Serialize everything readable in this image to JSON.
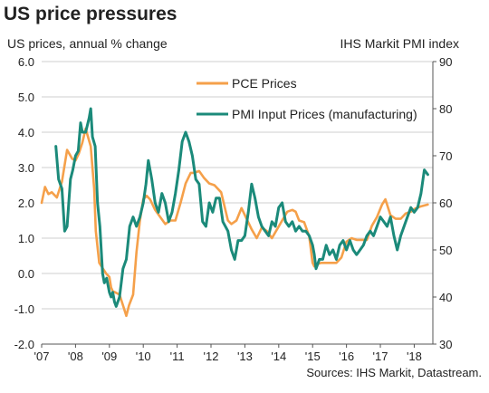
{
  "chart_data": {
    "type": "line",
    "title": "US price pressures",
    "ylabel_left": "US prices, annual % change",
    "ylabel_right": "IHS Markit PMI index",
    "source": "Sources: IHS Markit, Datastream.",
    "x_tick_labels": [
      "'07",
      "'08",
      "'09",
      "'10",
      "'11",
      "'12",
      "'13",
      "'14",
      "'15",
      "'16",
      "'17",
      "'18"
    ],
    "x_range": [
      2007.0,
      2018.55
    ],
    "y_left_range": [
      -2.0,
      6.0
    ],
    "y_left_ticks": [
      "-2.0",
      "-1.0",
      "0.0",
      "1.0",
      "2.0",
      "3.0",
      "4.0",
      "5.0",
      "6.0"
    ],
    "y_right_range": [
      30,
      90
    ],
    "y_right_ticks": [
      "30",
      "40",
      "50",
      "60",
      "70",
      "80",
      "90"
    ],
    "grid": "horizontal",
    "legend_position": "top-center",
    "series": [
      {
        "name": "PCE Prices",
        "axis": "left",
        "color": "#f5a04a",
        "x": [
          2007.0,
          2007.1,
          2007.2,
          2007.3,
          2007.45,
          2007.6,
          2007.75,
          2007.9,
          2008.0,
          2008.1,
          2008.2,
          2008.3,
          2008.45,
          2008.55,
          2008.6,
          2008.7,
          2008.8,
          2008.9,
          2009.0,
          2009.05,
          2009.1,
          2009.2,
          2009.3,
          2009.4,
          2009.5,
          2009.58,
          2009.7,
          2009.8,
          2009.9,
          2010.0,
          2010.1,
          2010.2,
          2010.35,
          2010.5,
          2010.65,
          2010.8,
          2010.95,
          2011.1,
          2011.25,
          2011.4,
          2011.5,
          2011.65,
          2011.8,
          2011.95,
          2012.1,
          2012.3,
          2012.5,
          2012.6,
          2012.75,
          2012.9,
          2013.05,
          2013.2,
          2013.35,
          2013.5,
          2013.65,
          2013.8,
          2013.95,
          2014.1,
          2014.25,
          2014.4,
          2014.5,
          2014.6,
          2014.75,
          2014.9,
          2015.0,
          2015.05,
          2015.1,
          2015.25,
          2015.4,
          2015.55,
          2015.7,
          2015.85,
          2016.0,
          2016.15,
          2016.3,
          2016.45,
          2016.6,
          2016.75,
          2016.9,
          2017.05,
          2017.15,
          2017.3,
          2017.45,
          2017.6,
          2017.75,
          2017.9,
          2018.05,
          2018.2,
          2018.4
        ],
        "values": [
          2.0,
          2.45,
          2.25,
          2.3,
          2.15,
          2.6,
          3.5,
          3.25,
          3.2,
          3.4,
          3.7,
          4.1,
          3.6,
          2.4,
          1.2,
          0.3,
          0.15,
          0.0,
          -0.1,
          -0.4,
          -0.5,
          -0.55,
          -0.6,
          -0.9,
          -1.2,
          -0.9,
          -0.6,
          0.6,
          1.5,
          2.1,
          2.2,
          2.1,
          1.8,
          1.6,
          1.4,
          1.5,
          1.5,
          2.0,
          2.55,
          2.85,
          2.85,
          2.9,
          2.7,
          2.55,
          2.5,
          2.3,
          1.5,
          1.4,
          1.5,
          1.85,
          1.55,
          1.25,
          1.0,
          1.3,
          1.2,
          1.0,
          1.25,
          1.5,
          1.75,
          1.8,
          1.75,
          1.5,
          1.45,
          1.05,
          0.3,
          0.2,
          0.25,
          0.3,
          0.3,
          0.3,
          0.3,
          0.45,
          0.9,
          1.0,
          0.95,
          0.95,
          0.95,
          1.35,
          1.6,
          1.95,
          2.1,
          1.65,
          1.55,
          1.55,
          1.7,
          1.75,
          1.85,
          1.9,
          1.95
        ]
      },
      {
        "name": "PMI Input Prices (manufacturing)",
        "axis": "right",
        "color": "#1b8a7a",
        "x": [
          2007.42,
          2007.5,
          2007.6,
          2007.68,
          2007.75,
          2007.85,
          2007.92,
          2008.0,
          2008.08,
          2008.15,
          2008.2,
          2008.3,
          2008.4,
          2008.45,
          2008.5,
          2008.58,
          2008.65,
          2008.72,
          2008.8,
          2008.85,
          2008.92,
          2009.0,
          2009.05,
          2009.1,
          2009.15,
          2009.2,
          2009.3,
          2009.4,
          2009.5,
          2009.6,
          2009.7,
          2009.8,
          2009.9,
          2010.0,
          2010.08,
          2010.15,
          2010.25,
          2010.35,
          2010.45,
          2010.55,
          2010.65,
          2010.75,
          2010.85,
          2010.95,
          2011.05,
          2011.15,
          2011.25,
          2011.35,
          2011.45,
          2011.55,
          2011.65,
          2011.75,
          2011.85,
          2011.95,
          2012.05,
          2012.15,
          2012.25,
          2012.35,
          2012.5,
          2012.6,
          2012.7,
          2012.8,
          2012.9,
          2013.0,
          2013.1,
          2013.2,
          2013.3,
          2013.4,
          2013.5,
          2013.6,
          2013.7,
          2013.8,
          2013.9,
          2014.0,
          2014.1,
          2014.2,
          2014.3,
          2014.4,
          2014.5,
          2014.6,
          2014.7,
          2014.8,
          2014.9,
          2015.0,
          2015.05,
          2015.1,
          2015.2,
          2015.3,
          2015.4,
          2015.5,
          2015.6,
          2015.7,
          2015.8,
          2015.9,
          2016.0,
          2016.1,
          2016.2,
          2016.3,
          2016.4,
          2016.5,
          2016.6,
          2016.7,
          2016.8,
          2016.9,
          2017.0,
          2017.1,
          2017.2,
          2017.3,
          2017.4,
          2017.5,
          2017.6,
          2017.7,
          2017.8,
          2017.9,
          2018.0,
          2018.1,
          2018.2,
          2018.3,
          2018.4
        ],
        "values": [
          72,
          65,
          63,
          54,
          55,
          65,
          67,
          70,
          71,
          77,
          75,
          75,
          78,
          80,
          74,
          72,
          60,
          55,
          45,
          43,
          44,
          41,
          40,
          41,
          39,
          38,
          40,
          46,
          48,
          55,
          57,
          55,
          57,
          60,
          64,
          69,
          65,
          60,
          58,
          62,
          60,
          56,
          58,
          62,
          67,
          73,
          75,
          73,
          70,
          65,
          64,
          56,
          55,
          60,
          58,
          61,
          61,
          56,
          54,
          50,
          48,
          52,
          52,
          53,
          58,
          64,
          61,
          57,
          55,
          54,
          53,
          56,
          55,
          59,
          60,
          56,
          55,
          56,
          54,
          55,
          54,
          54,
          53,
          51,
          49,
          46,
          48,
          48,
          51,
          49,
          50,
          48,
          51,
          52,
          50,
          52,
          50,
          49,
          50,
          51,
          53,
          54,
          53,
          55,
          57,
          56,
          55,
          57,
          53,
          50,
          53,
          55,
          57,
          59,
          58,
          59,
          62,
          67,
          66
        ]
      }
    ]
  }
}
